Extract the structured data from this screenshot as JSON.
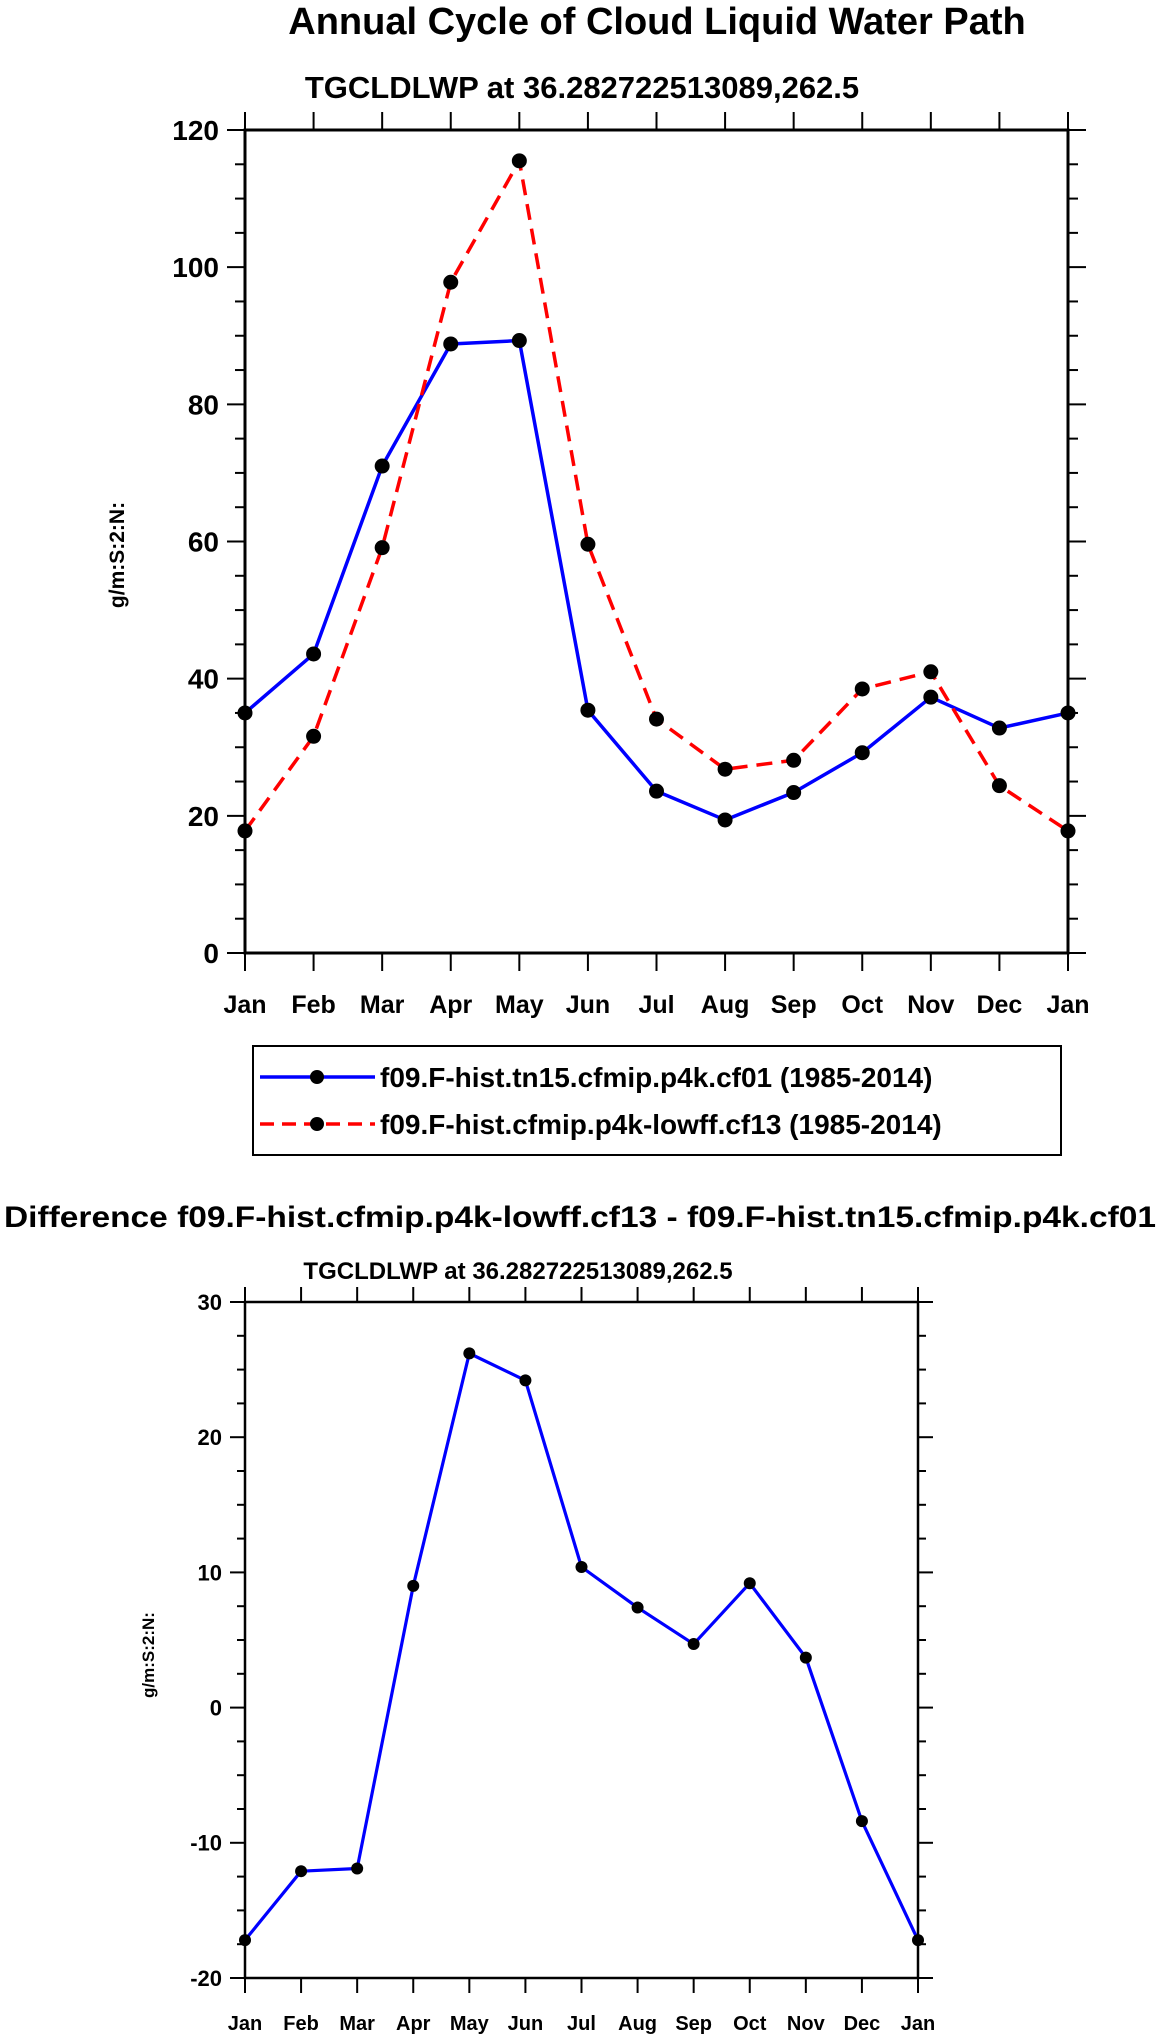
{
  "page_title": "Annual Cycle of Cloud Liquid Water Path",
  "colors": {
    "series1": "#0000ff",
    "series2": "#ff0000",
    "markers": "#000000"
  },
  "chart_data": [
    {
      "type": "line",
      "title": "TGCLDLWP at 36.282722513089,262.5",
      "xlabel": "",
      "ylabel": "g/m:S:2:N:",
      "categories": [
        "Jan",
        "Feb",
        "Mar",
        "Apr",
        "May",
        "Jun",
        "Jul",
        "Aug",
        "Sep",
        "Oct",
        "Nov",
        "Dec",
        "Jan"
      ],
      "yticks": [
        0,
        20,
        40,
        60,
        80,
        100,
        120
      ],
      "ylim": [
        0,
        120
      ],
      "legend": "bottom",
      "series": [
        {
          "name": "f09.F-hist.tn15.cfmip.p4k.cf01 (1985-2014)",
          "style": "solid",
          "color": "#0000ff",
          "values": [
            35.0,
            43.6,
            71.0,
            88.8,
            89.3,
            35.4,
            23.6,
            19.4,
            23.4,
            29.2,
            37.3,
            32.8,
            35.0
          ]
        },
        {
          "name": "f09.F-hist.cfmip.p4k-lowff.cf13 (1985-2014)",
          "style": "dashed",
          "color": "#ff0000",
          "values": [
            17.8,
            31.6,
            59.1,
            97.8,
            115.5,
            59.6,
            34.1,
            26.8,
            28.1,
            38.5,
            41.0,
            24.4,
            17.8
          ]
        }
      ]
    },
    {
      "type": "line",
      "title": "Difference f09.F-hist.cfmip.p4k-lowff.cf13 - f09.F-hist.tn15.cfmip.p4k.cf01",
      "subtitle": "TGCLDLWP at 36.282722513089,262.5",
      "xlabel": "",
      "ylabel": "g/m:S:2:N:",
      "categories": [
        "Jan",
        "Feb",
        "Mar",
        "Apr",
        "May",
        "Jun",
        "Jul",
        "Aug",
        "Sep",
        "Oct",
        "Nov",
        "Dec",
        "Jan"
      ],
      "yticks": [
        -20,
        -10,
        0,
        10,
        20,
        30
      ],
      "ylim": [
        -20,
        30
      ],
      "series": [
        {
          "name": "difference",
          "style": "solid",
          "color": "#0000ff",
          "values": [
            -17.2,
            -12.1,
            -11.9,
            9.0,
            26.2,
            24.2,
            10.4,
            7.4,
            4.7,
            9.2,
            3.7,
            -8.4,
            -17.2
          ]
        }
      ]
    }
  ]
}
